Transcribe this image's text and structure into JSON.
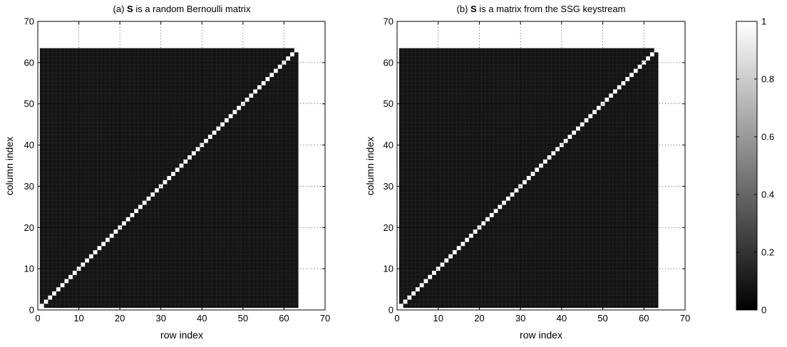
{
  "chart_data": {
    "panels": [
      {
        "type": "heatmap",
        "title_prefix": "(a) ",
        "title_bold": "S",
        "title_suffix": " is a random Bernoulli matrix",
        "xlabel": "row index",
        "ylabel": "column index",
        "xlim": [
          0,
          70
        ],
        "ylim": [
          0,
          70
        ],
        "xticks": [
          0,
          10,
          20,
          30,
          40,
          50,
          60,
          70
        ],
        "yticks": [
          0,
          10,
          20,
          30,
          40,
          50,
          60,
          70
        ],
        "grid": true,
        "matrix_size": 63,
        "diagonal_value": 1,
        "off_diagonal_value": 0.08
      },
      {
        "type": "heatmap",
        "title_prefix": "(b) ",
        "title_bold": "S",
        "title_suffix": " is a matrix from the SSG keystream",
        "xlabel": "row index",
        "ylabel": "column index",
        "xlim": [
          0,
          70
        ],
        "ylim": [
          0,
          70
        ],
        "xticks": [
          0,
          10,
          20,
          30,
          40,
          50,
          60,
          70
        ],
        "yticks": [
          0,
          10,
          20,
          30,
          40,
          50,
          60,
          70
        ],
        "grid": true,
        "matrix_size": 63,
        "diagonal_value": 1,
        "off_diagonal_value": 0.08
      }
    ],
    "colorbar": {
      "colormap": "gray",
      "range": [
        0,
        1
      ],
      "ticks": [
        "0",
        "0.2",
        "0.4",
        "0.6",
        "0.8",
        "1"
      ]
    }
  }
}
